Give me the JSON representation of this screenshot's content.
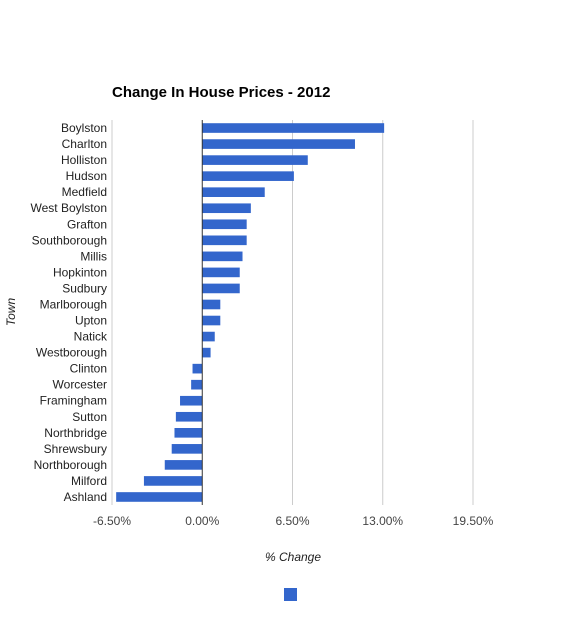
{
  "chart_data": {
    "type": "bar",
    "orientation": "horizontal",
    "title": "Change In House Prices - 2012",
    "xlabel": "% Change",
    "ylabel": "Town",
    "xlim": [
      -6.5,
      19.5
    ],
    "x_ticks": [
      -6.5,
      0,
      6.5,
      13,
      19.5
    ],
    "x_tick_labels": [
      "-6.50%",
      "0.00%",
      "6.50%",
      "13.00%",
      "19.50%"
    ],
    "grid": true,
    "legend": "bottom",
    "categories": [
      "Boylston",
      "Charlton",
      "Holliston",
      "Hudson",
      "Medfield",
      "West Boylston",
      "Grafton",
      "Southborough",
      "Millis",
      "Hopkinton",
      "Sudbury",
      "Marlborough",
      "Upton",
      "Natick",
      "Westborough",
      "Clinton",
      "Worcester",
      "Framingham",
      "Sutton",
      "Northbridge",
      "Shrewsbury",
      "Northborough",
      "Milford",
      "Ashland"
    ],
    "series": [
      {
        "color": "#3366cc",
        "values": [
          13.1,
          11.0,
          7.6,
          6.6,
          4.5,
          3.5,
          3.2,
          3.2,
          2.9,
          2.7,
          2.7,
          1.3,
          1.3,
          0.9,
          0.6,
          -0.7,
          -0.8,
          -1.6,
          -1.9,
          -2.0,
          -2.2,
          -2.7,
          -4.2,
          -6.2
        ]
      }
    ]
  }
}
